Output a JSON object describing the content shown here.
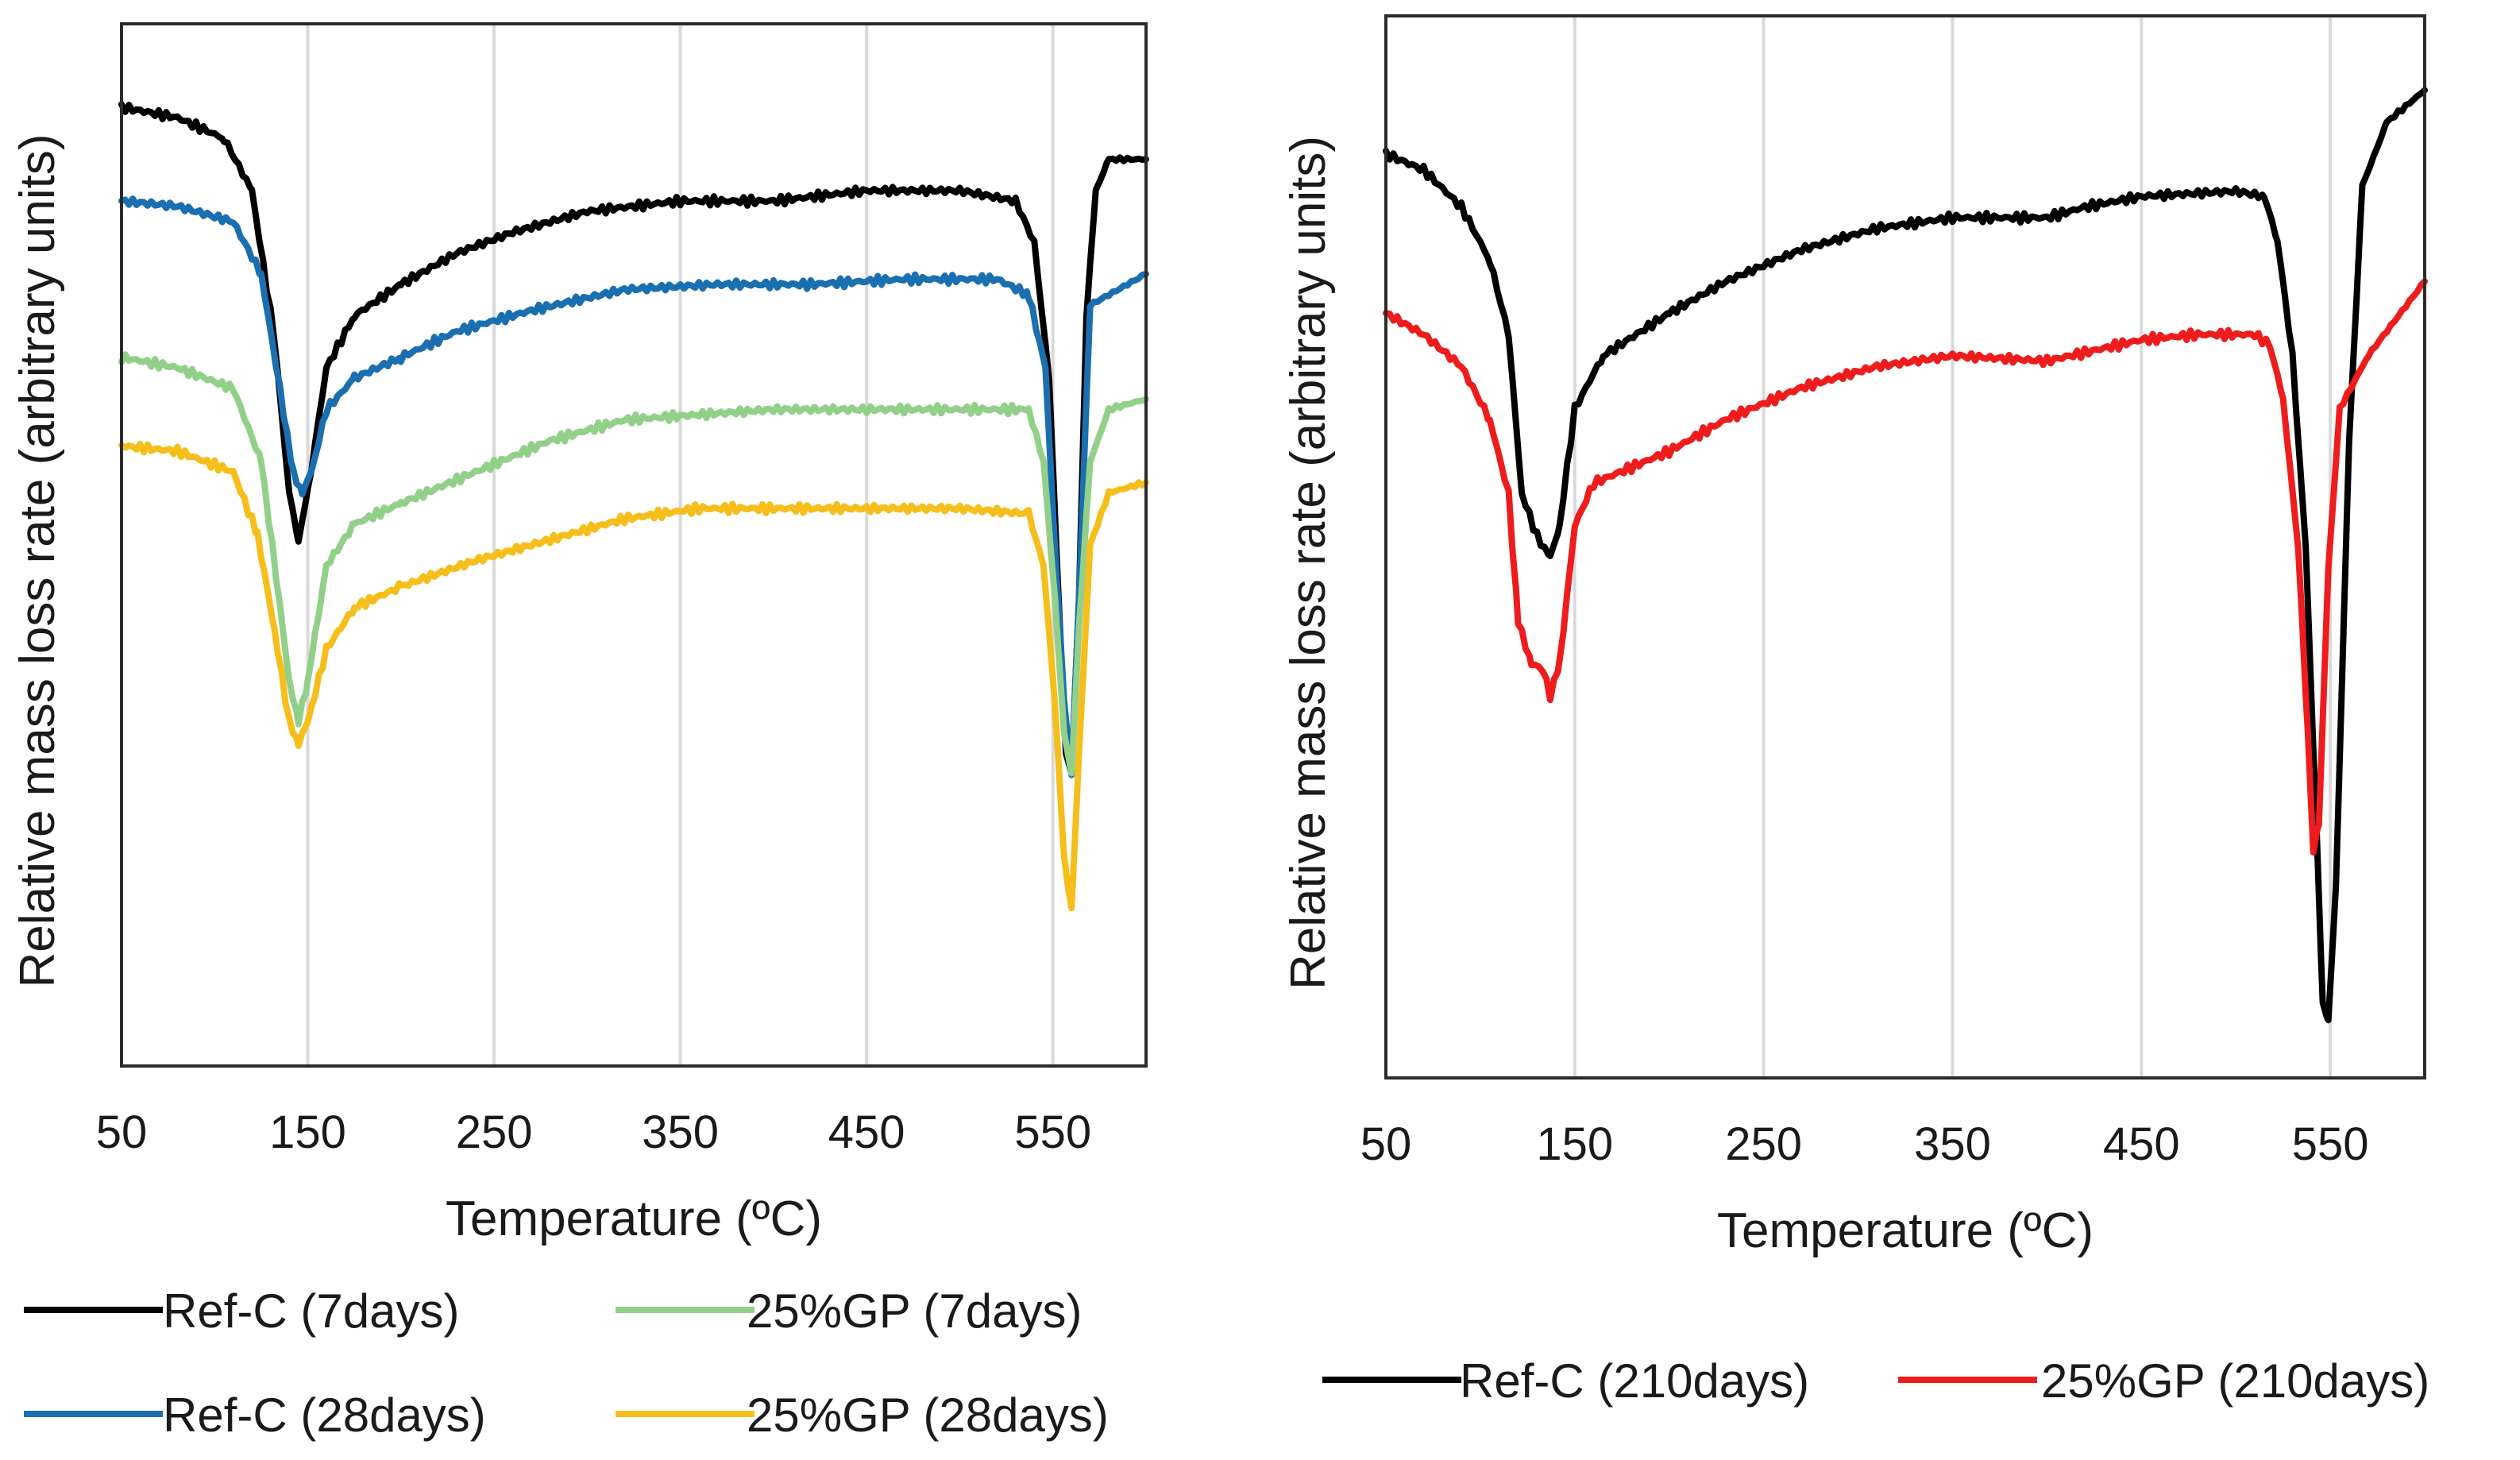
{
  "chart_data": [
    {
      "type": "line",
      "panel": "left",
      "title": "",
      "xlabel": "Temperature (ºC)",
      "ylabel": "Relative mass loss rate (arbitrary units)",
      "xlim": [
        50,
        600
      ],
      "ylim": [
        0,
        100
      ],
      "xticks": [
        50,
        150,
        250,
        350,
        450,
        550
      ],
      "xtick_labels": [
        "50",
        "150",
        "250",
        "350",
        "450",
        "550"
      ],
      "y_tick_labels": "none",
      "grid": "vertical",
      "legend_position": "bottom",
      "series": [
        {
          "name": "Ref-C (7days)",
          "color": "#000000",
          "points": [
            [
              50,
              92
            ],
            [
              80,
              91
            ],
            [
              105,
              89
            ],
            [
              120,
              84
            ],
            [
              132,
              70
            ],
            [
              140,
              55
            ],
            [
              145,
              50.5
            ],
            [
              150,
              55
            ],
            [
              160,
              67
            ],
            [
              175,
              72
            ],
            [
              200,
              75
            ],
            [
              230,
              78
            ],
            [
              260,
              80
            ],
            [
              300,
              82
            ],
            [
              350,
              83
            ],
            [
              400,
              83
            ],
            [
              450,
              84
            ],
            [
              500,
              84
            ],
            [
              530,
              83
            ],
            [
              540,
              79
            ],
            [
              548,
              66
            ],
            [
              553,
              45
            ],
            [
              557,
              30
            ],
            [
              560,
              28
            ],
            [
              564,
              45
            ],
            [
              568,
              72
            ],
            [
              573,
              84
            ],
            [
              580,
              87
            ],
            [
              600,
              87
            ]
          ]
        },
        {
          "name": "Ref-C (28days)",
          "color": "#1a6fb0",
          "points": [
            [
              50,
              83
            ],
            [
              80,
              82.5
            ],
            [
              110,
              81
            ],
            [
              125,
              76
            ],
            [
              135,
              65
            ],
            [
              142,
              57
            ],
            [
              147,
              55
            ],
            [
              152,
              57
            ],
            [
              160,
              63
            ],
            [
              175,
              66
            ],
            [
              200,
              68
            ],
            [
              230,
              70.5
            ],
            [
              270,
              72.5
            ],
            [
              320,
              74.5
            ],
            [
              370,
              75
            ],
            [
              420,
              75
            ],
            [
              470,
              75.5
            ],
            [
              520,
              75.5
            ],
            [
              537,
              74
            ],
            [
              546,
              67
            ],
            [
              551,
              50
            ],
            [
              556,
              35
            ],
            [
              560,
              28
            ],
            [
              564,
              45
            ],
            [
              570,
              73
            ],
            [
              600,
              76
            ]
          ]
        },
        {
          "name": "25%GP (7days)",
          "color": "#92d08a",
          "points": [
            [
              50,
              68
            ],
            [
              80,
              67
            ],
            [
              110,
              65
            ],
            [
              125,
              58
            ],
            [
              133,
              47
            ],
            [
              140,
              37
            ],
            [
              145,
              33
            ],
            [
              150,
              37
            ],
            [
              160,
              48
            ],
            [
              175,
              52
            ],
            [
              200,
              54
            ],
            [
              240,
              57
            ],
            [
              280,
              60
            ],
            [
              320,
              62
            ],
            [
              360,
              62.5
            ],
            [
              400,
              63
            ],
            [
              450,
              63
            ],
            [
              500,
              63
            ],
            [
              537,
              63
            ],
            [
              545,
              58
            ],
            [
              551,
              45
            ],
            [
              556,
              32
            ],
            [
              560,
              28
            ],
            [
              564,
              42
            ],
            [
              570,
              58
            ],
            [
              580,
              63
            ],
            [
              600,
              64
            ]
          ]
        },
        {
          "name": "25%GP (28days)",
          "color": "#f5be1b",
          "points": [
            [
              50,
              59.5
            ],
            [
              80,
              59
            ],
            [
              110,
              57
            ],
            [
              123,
              51
            ],
            [
              132,
              42
            ],
            [
              140,
              33
            ],
            [
              145,
              31
            ],
            [
              150,
              33
            ],
            [
              160,
              40
            ],
            [
              175,
              44
            ],
            [
              200,
              46
            ],
            [
              240,
              48.5
            ],
            [
              280,
              50.5
            ],
            [
              320,
              52.5
            ],
            [
              360,
              53.5
            ],
            [
              400,
              53.5
            ],
            [
              450,
              53.5
            ],
            [
              500,
              53.5
            ],
            [
              537,
              53
            ],
            [
              545,
              48
            ],
            [
              551,
              35
            ],
            [
              556,
              20
            ],
            [
              560,
              15
            ],
            [
              564,
              30
            ],
            [
              570,
              50
            ],
            [
              580,
              55
            ],
            [
              600,
              56
            ]
          ]
        }
      ]
    },
    {
      "type": "line",
      "panel": "right",
      "title": "",
      "xlabel": "Temperature (ºC)",
      "ylabel": "Relative mass loss rate (arbitrary units)",
      "xlim": [
        50,
        600
      ],
      "ylim": [
        0,
        100
      ],
      "xticks": [
        50,
        150,
        250,
        350,
        450,
        550
      ],
      "xtick_labels": [
        "50",
        "150",
        "250",
        "350",
        "450",
        "550"
      ],
      "y_tick_labels": "none",
      "grid": "vertical",
      "legend_position": "bottom",
      "series": [
        {
          "name": "Ref-C (210days)",
          "color": "#000000",
          "points": [
            [
              50,
              87
            ],
            [
              70,
              85.5
            ],
            [
              90,
              82
            ],
            [
              105,
              77
            ],
            [
              115,
              70
            ],
            [
              122,
              55
            ],
            [
              130,
              51
            ],
            [
              137,
              49
            ],
            [
              142,
              52
            ],
            [
              150,
              63
            ],
            [
              165,
              68
            ],
            [
              200,
              72
            ],
            [
              230,
              75
            ],
            [
              270,
              78
            ],
            [
              310,
              80
            ],
            [
              350,
              81
            ],
            [
              400,
              81
            ],
            [
              420,
              82
            ],
            [
              450,
              83
            ],
            [
              500,
              83.5
            ],
            [
              515,
              83
            ],
            [
              522,
              79
            ],
            [
              530,
              68
            ],
            [
              537,
              50
            ],
            [
              543,
              22
            ],
            [
              546,
              7
            ],
            [
              549,
              5.5
            ],
            [
              553,
              18
            ],
            [
              560,
              60
            ],
            [
              567,
              84
            ],
            [
              580,
              90
            ],
            [
              600,
              93
            ]
          ]
        },
        {
          "name": "25%GP (210days)",
          "color": "#ee1c1c",
          "points": [
            [
              50,
              72
            ],
            [
              70,
              70
            ],
            [
              90,
              67
            ],
            [
              105,
              62
            ],
            [
              115,
              55
            ],
            [
              120,
              43
            ],
            [
              127,
              39
            ],
            [
              133,
              38.5
            ],
            [
              137,
              36
            ],
            [
              142,
              39
            ],
            [
              150,
              52
            ],
            [
              160,
              56
            ],
            [
              200,
              59
            ],
            [
              230,
              62
            ],
            [
              270,
              65
            ],
            [
              310,
              67
            ],
            [
              350,
              68
            ],
            [
              400,
              67.5
            ],
            [
              450,
              69.5
            ],
            [
              480,
              70
            ],
            [
              510,
              70
            ],
            [
              518,
              69
            ],
            [
              525,
              64
            ],
            [
              533,
              50
            ],
            [
              538,
              33
            ],
            [
              541,
              21.5
            ],
            [
              544,
              24
            ],
            [
              549,
              48
            ],
            [
              555,
              63
            ],
            [
              570,
              68
            ],
            [
              600,
              75
            ]
          ]
        }
      ]
    }
  ]
}
